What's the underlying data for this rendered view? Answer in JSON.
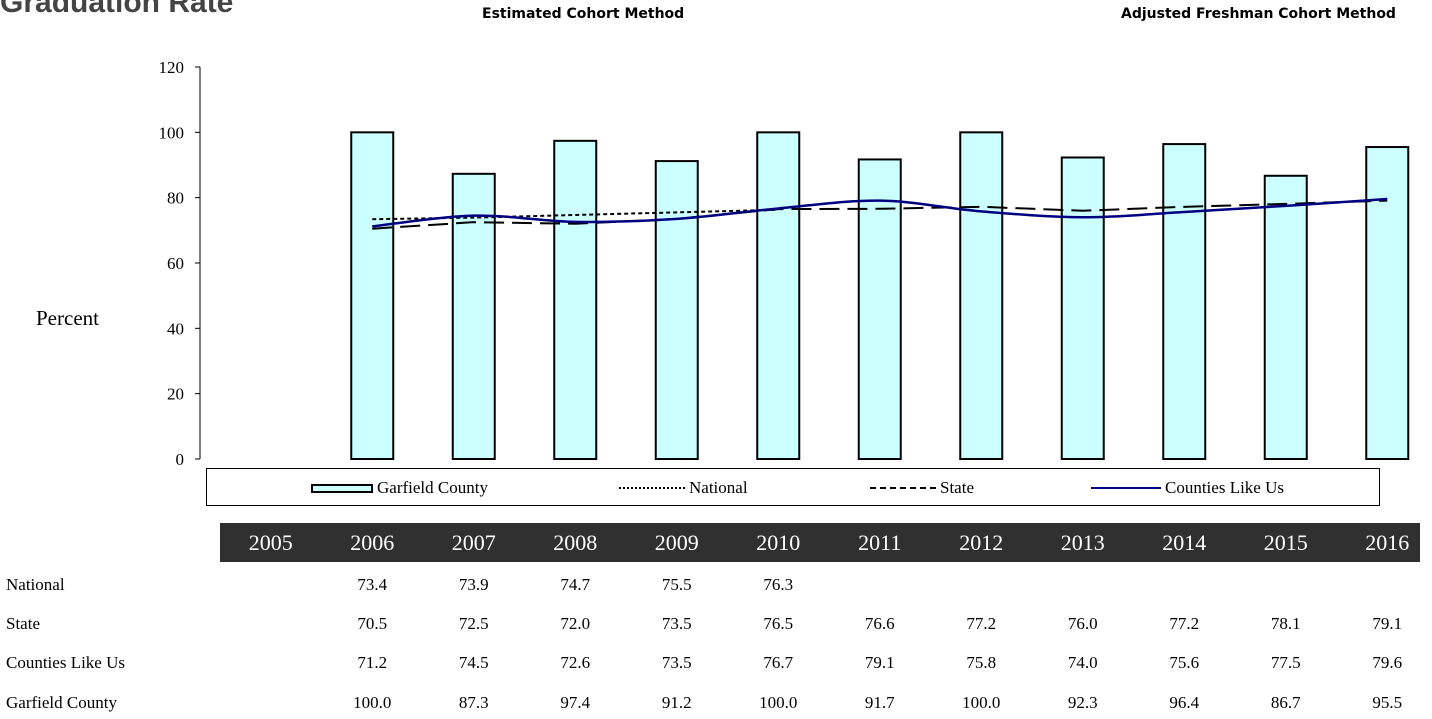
{
  "page": {
    "title": "Graduation Rate",
    "method_left": "Estimated Cohort Method",
    "method_right": "Adjusted Freshman Cohort Method"
  },
  "chart_data": {
    "type": "bar",
    "ylabel": "Percent",
    "ylim": [
      0,
      120
    ],
    "yticks": [
      0,
      20,
      40,
      60,
      80,
      100,
      120
    ],
    "categories": [
      "2005",
      "2006",
      "2007",
      "2008",
      "2009",
      "2010",
      "2011",
      "2012",
      "2013",
      "2014",
      "2015",
      "2016"
    ],
    "bar_series": {
      "name": "Garfield County",
      "color": "#ccffff",
      "values": [
        null,
        100.0,
        87.3,
        97.4,
        91.2,
        100.0,
        91.7,
        100.0,
        92.3,
        96.4,
        86.7,
        95.5
      ]
    },
    "line_series": [
      {
        "name": "National",
        "style": "dotted",
        "color": "#000000",
        "values": [
          null,
          73.4,
          73.9,
          74.7,
          75.5,
          76.3,
          null,
          null,
          null,
          null,
          null,
          null
        ]
      },
      {
        "name": "State",
        "style": "dashed",
        "color": "#000000",
        "values": [
          null,
          70.5,
          72.5,
          72.0,
          73.5,
          76.5,
          76.6,
          77.2,
          76.0,
          77.2,
          78.1,
          79.1
        ]
      },
      {
        "name": "Counties Like Us",
        "style": "solid",
        "color": "#000080",
        "values": [
          null,
          71.2,
          74.5,
          72.6,
          73.5,
          76.7,
          79.1,
          75.8,
          74.0,
          75.6,
          77.5,
          79.6
        ]
      }
    ],
    "legend_position": "bottom",
    "legend": [
      "Garfield County",
      "National",
      "State",
      "Counties Like Us"
    ],
    "grid": false
  },
  "table": {
    "years": [
      "2005",
      "2006",
      "2007",
      "2008",
      "2009",
      "2010",
      "2011",
      "2012",
      "2013",
      "2014",
      "2015",
      "2016"
    ],
    "rows": [
      {
        "label": "National",
        "values": [
          "",
          "73.4",
          "73.9",
          "74.7",
          "75.5",
          "76.3",
          "",
          "",
          "",
          "",
          "",
          ""
        ]
      },
      {
        "label": "State",
        "values": [
          "",
          "70.5",
          "72.5",
          "72.0",
          "73.5",
          "76.5",
          "76.6",
          "77.2",
          "76.0",
          "77.2",
          "78.1",
          "79.1"
        ]
      },
      {
        "label": "Counties Like Us",
        "values": [
          "",
          "71.2",
          "74.5",
          "72.6",
          "73.5",
          "76.7",
          "79.1",
          "75.8",
          "74.0",
          "75.6",
          "77.5",
          "79.6"
        ]
      },
      {
        "label": "Garfield County",
        "values": [
          "",
          "100.0",
          "87.3",
          "97.4",
          "91.2",
          "100.0",
          "91.7",
          "100.0",
          "92.3",
          "96.4",
          "86.7",
          "95.5"
        ]
      }
    ]
  }
}
